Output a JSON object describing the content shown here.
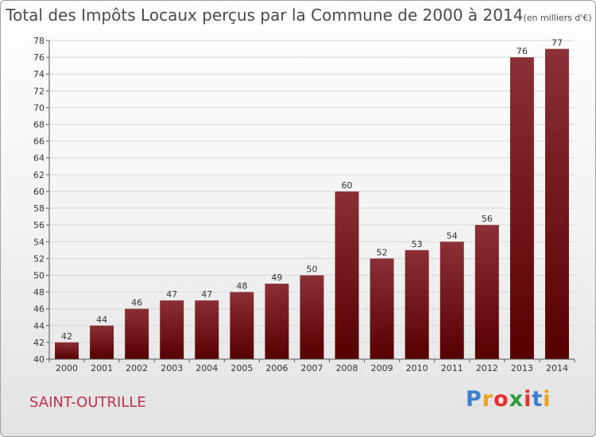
{
  "chart_data": {
    "type": "bar",
    "title": "Total des Impôts Locaux perçus par la Commune de 2000 à 2014",
    "unit_label": "(en milliers d'€)",
    "categories": [
      "2000",
      "2001",
      "2002",
      "2003",
      "2004",
      "2005",
      "2006",
      "2007",
      "2008",
      "2009",
      "2010",
      "2011",
      "2012",
      "2013",
      "2014"
    ],
    "values": [
      42,
      44,
      46,
      47,
      47,
      48,
      49,
      50,
      60,
      52,
      53,
      54,
      56,
      76,
      77
    ],
    "ylim": [
      40,
      78
    ],
    "ytick_step": 2,
    "xlabel": "",
    "ylabel": "",
    "grid": true,
    "bar_color_top": "#8b3036",
    "bar_color_bottom": "#560000"
  },
  "commune_name": "SAINT-OUTRILLE",
  "logo": {
    "letters": [
      "P",
      "r",
      "o",
      "x",
      "i",
      "t",
      "i"
    ],
    "colors": [
      "#3a7fd0",
      "#f0a020",
      "#e03030",
      "#2a9a3a",
      "#e03030",
      "#3a7fd0",
      "#f0a020"
    ]
  }
}
